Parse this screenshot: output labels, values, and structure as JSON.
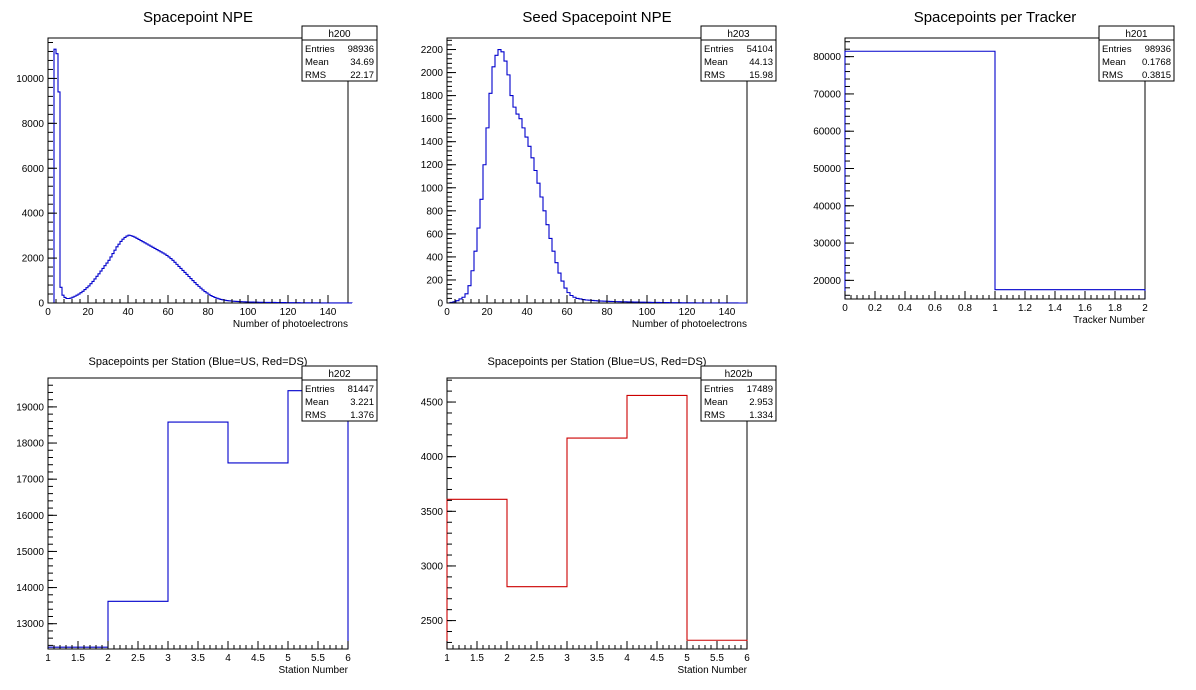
{
  "chart_data": [
    {
      "type": "bar",
      "hist_name": "h200",
      "title": "Spacepoint NPE",
      "xlabel": "Number of photoelectrons",
      "ylabel": "",
      "xlim": [
        0,
        150
      ],
      "ylim": [
        0,
        11800
      ],
      "xticks": [
        0,
        20,
        40,
        60,
        80,
        100,
        120,
        140
      ],
      "yticks": [
        0,
        2000,
        4000,
        6000,
        8000,
        10000
      ],
      "line_color": "#0000cc",
      "stats": {
        "entries_label": "Entries",
        "entries": "98936",
        "mean_label": "Mean",
        "mean": "34.69",
        "rms_label": "RMS",
        "rms": "22.17"
      },
      "bin_width": 1,
      "values": [
        0,
        0,
        0,
        11300,
        11100,
        9400,
        700,
        350,
        250,
        200,
        200,
        220,
        260,
        300,
        350,
        400,
        460,
        520,
        600,
        680,
        760,
        860,
        960,
        1070,
        1190,
        1300,
        1420,
        1540,
        1660,
        1780,
        1900,
        2050,
        2200,
        2350,
        2500,
        2620,
        2740,
        2840,
        2920,
        2980,
        3020,
        3000,
        2970,
        2930,
        2880,
        2830,
        2780,
        2730,
        2680,
        2630,
        2580,
        2530,
        2480,
        2430,
        2380,
        2330,
        2280,
        2230,
        2180,
        2120,
        2050,
        1980,
        1900,
        1810,
        1720,
        1630,
        1540,
        1450,
        1360,
        1270,
        1180,
        1090,
        1000,
        910,
        820,
        740,
        660,
        580,
        510,
        450,
        390,
        330,
        290,
        250,
        215,
        185,
        160,
        140,
        125,
        110,
        98,
        90,
        82,
        75,
        70,
        65,
        60,
        56,
        52,
        48,
        45,
        42,
        40,
        38,
        36,
        34,
        32,
        30,
        28,
        27,
        26,
        25,
        24,
        23,
        22,
        21,
        20,
        19,
        18,
        17,
        16,
        15,
        14,
        13,
        12,
        12,
        11,
        11,
        10,
        10,
        9,
        9,
        8,
        8,
        7,
        7,
        6,
        6,
        5,
        5,
        4,
        4,
        4,
        3,
        3,
        3,
        2,
        2,
        2,
        2,
        1,
        1
      ]
    },
    {
      "type": "bar",
      "hist_name": "h203",
      "title": "Seed Spacepoint NPE",
      "xlabel": "Number of photoelectrons",
      "ylabel": "",
      "xlim": [
        0,
        150
      ],
      "ylim": [
        0,
        2300
      ],
      "xticks": [
        0,
        20,
        40,
        60,
        80,
        100,
        120,
        140
      ],
      "yticks": [
        0,
        200,
        400,
        600,
        800,
        1000,
        1200,
        1400,
        1600,
        1800,
        2000,
        2200
      ],
      "line_color": "#0000cc",
      "stats": {
        "entries_label": "Entries",
        "entries": "54104",
        "mean_label": "Mean",
        "mean": "44.13",
        "rms_label": "RMS",
        "rms": "15.98"
      },
      "bin_width": 1.5,
      "values": [
        0,
        5,
        10,
        20,
        35,
        50,
        80,
        150,
        280,
        450,
        650,
        900,
        1200,
        1520,
        1820,
        2050,
        2150,
        2200,
        2180,
        2100,
        1980,
        1800,
        1700,
        1640,
        1600,
        1520,
        1440,
        1360,
        1260,
        1150,
        1040,
        920,
        800,
        680,
        560,
        450,
        350,
        260,
        190,
        130,
        90,
        65,
        50,
        40,
        35,
        30,
        26,
        24,
        22,
        20,
        18,
        17,
        16,
        15,
        14,
        13,
        12,
        11,
        10,
        10,
        9,
        9,
        8,
        8,
        7,
        7,
        6,
        6,
        5,
        5,
        5,
        4,
        4,
        4,
        3,
        3,
        3,
        3,
        2,
        2,
        2,
        2,
        2,
        1,
        1,
        1,
        1,
        1,
        1,
        1,
        1,
        1,
        1,
        1,
        1,
        1,
        1,
        0,
        0,
        0
      ]
    },
    {
      "type": "bar",
      "hist_name": "h201",
      "title": "Spacepoints per Tracker",
      "xlabel": "Tracker Number",
      "ylabel": "",
      "xlim": [
        0,
        2
      ],
      "ylim": [
        15000,
        85000
      ],
      "xticks": [
        0,
        0.2,
        0.4,
        0.6,
        0.8,
        1,
        1.2,
        1.4,
        1.6,
        1.8,
        2
      ],
      "xticklabels": [
        "0",
        "0.2",
        "0.4",
        "0.6",
        "0.8",
        "1",
        "1.2",
        "1.4",
        "1.6",
        "1.8",
        "2"
      ],
      "yticks": [
        20000,
        30000,
        40000,
        50000,
        60000,
        70000,
        80000
      ],
      "line_color": "#0000cc",
      "stats": {
        "entries_label": "Entries",
        "entries": "98936",
        "mean_label": "Mean",
        "mean": "0.1768",
        "rms_label": "RMS",
        "rms": "0.3815"
      },
      "x0": 0,
      "bin_width": 1,
      "values": [
        81447,
        17489
      ]
    },
    {
      "type": "bar",
      "hist_name": "h202",
      "title": "Spacepoints per Station (Blue=US, Red=DS)",
      "xlabel": "Station Number",
      "ylabel": "",
      "xlim": [
        1,
        6
      ],
      "ylim": [
        12300,
        19800
      ],
      "xticks": [
        1,
        1.5,
        2,
        2.5,
        3,
        3.5,
        4,
        4.5,
        5,
        5.5,
        6
      ],
      "xticklabels": [
        "1",
        "1.5",
        "2",
        "2.5",
        "3",
        "3.5",
        "4",
        "4.5",
        "5",
        "5.5",
        "6"
      ],
      "yticks": [
        13000,
        14000,
        15000,
        16000,
        17000,
        18000,
        19000
      ],
      "line_color": "#0000cc",
      "stats": {
        "entries_label": "Entries",
        "entries": "81447",
        "mean_label": "Mean",
        "mean": "3.221",
        "rms_label": "RMS",
        "rms": "1.376"
      },
      "x0": 1,
      "bin_width": 1,
      "values": [
        12350,
        13620,
        18580,
        17450,
        19450
      ]
    },
    {
      "type": "bar",
      "hist_name": "h202b",
      "title": "Spacepoints per Station (Blue=US, Red=DS)",
      "xlabel": "Station Number",
      "ylabel": "",
      "xlim": [
        1,
        6
      ],
      "ylim": [
        2240,
        4720
      ],
      "xticks": [
        1,
        1.5,
        2,
        2.5,
        3,
        3.5,
        4,
        4.5,
        5,
        5.5,
        6
      ],
      "xticklabels": [
        "1",
        "1.5",
        "2",
        "2.5",
        "3",
        "3.5",
        "4",
        "4.5",
        "5",
        "5.5",
        "6"
      ],
      "yticks": [
        2500,
        3000,
        3500,
        4000,
        4500
      ],
      "line_color": "#cc0000",
      "stats": {
        "entries_label": "Entries",
        "entries": "17489",
        "mean_label": "Mean",
        "mean": "2.953",
        "rms_label": "RMS",
        "rms": "1.334"
      },
      "x0": 1,
      "bin_width": 1,
      "values": [
        3610,
        2810,
        4170,
        4560,
        2320
      ]
    }
  ]
}
